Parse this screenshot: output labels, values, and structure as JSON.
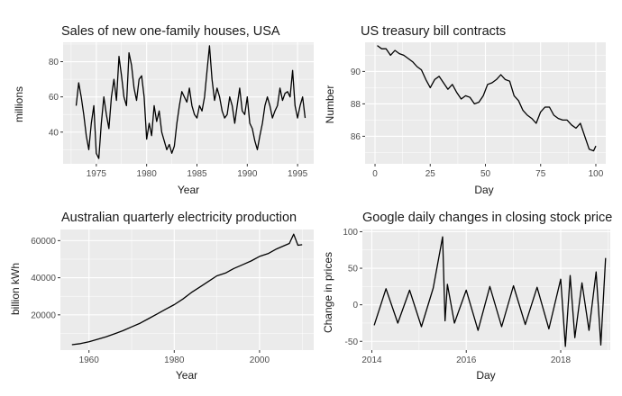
{
  "chart_data": [
    {
      "type": "line",
      "title": "Sales of new one-family houses, USA",
      "xlabel": "Year",
      "ylabel": "millions",
      "xlim": [
        1971.7,
        1996.6
      ],
      "ylim": [
        22,
        91
      ],
      "xticks": [
        1975,
        1980,
        1985,
        1990,
        1995
      ],
      "yticks": [
        40,
        60,
        80
      ],
      "grid": "on",
      "series": [
        {
          "x": [
            1973.0,
            1973.25,
            1973.5,
            1973.75,
            1974.0,
            1974.25,
            1974.5,
            1974.75,
            1975.0,
            1975.25,
            1975.5,
            1975.75,
            1976.0,
            1976.25,
            1976.5,
            1976.75,
            1977.0,
            1977.25,
            1977.5,
            1977.75,
            1978.0,
            1978.25,
            1978.5,
            1978.75,
            1979.0,
            1979.25,
            1979.5,
            1979.75,
            1980.0,
            1980.25,
            1980.5,
            1980.75,
            1981.0,
            1981.25,
            1981.5,
            1981.75,
            1982.0,
            1982.25,
            1982.5,
            1982.75,
            1983.0,
            1983.25,
            1983.5,
            1983.75,
            1984.0,
            1984.25,
            1984.5,
            1984.75,
            1985.0,
            1985.25,
            1985.5,
            1985.75,
            1986.0,
            1986.25,
            1986.5,
            1986.75,
            1987.0,
            1987.25,
            1987.5,
            1987.75,
            1988.0,
            1988.25,
            1988.5,
            1988.75,
            1989.0,
            1989.25,
            1989.5,
            1989.75,
            1990.0,
            1990.25,
            1990.5,
            1990.75,
            1991.0,
            1991.25,
            1991.5,
            1991.75,
            1992.0,
            1992.25,
            1992.5,
            1992.75,
            1993.0,
            1993.25,
            1993.5,
            1993.75,
            1994.0,
            1994.25,
            1994.5,
            1994.75,
            1995.0,
            1995.25,
            1995.5,
            1995.75
          ],
          "values": [
            55,
            68,
            60,
            50,
            38,
            30,
            45,
            55,
            28,
            25,
            45,
            60,
            50,
            42,
            60,
            70,
            58,
            83,
            72,
            60,
            55,
            85,
            78,
            65,
            58,
            70,
            72,
            60,
            36,
            45,
            38,
            55,
            46,
            52,
            40,
            35,
            30,
            33,
            28,
            32,
            45,
            55,
            63,
            60,
            57,
            65,
            55,
            50,
            48,
            55,
            52,
            60,
            75,
            89,
            70,
            58,
            65,
            60,
            52,
            48,
            50,
            60,
            55,
            45,
            55,
            65,
            52,
            50,
            60,
            45,
            42,
            35,
            30,
            38,
            45,
            55,
            60,
            55,
            48,
            52,
            55,
            65,
            58,
            62,
            63,
            60,
            75,
            55,
            48,
            55,
            60,
            48
          ]
        }
      ]
    },
    {
      "type": "line",
      "title": "US treasury bill contracts",
      "xlabel": "Day",
      "ylabel": "Number",
      "xlim": [
        -4.5,
        104.5
      ],
      "ylim": [
        84.3,
        91.8
      ],
      "xticks": [
        0,
        25,
        50,
        75,
        100
      ],
      "yticks": [
        86,
        88,
        90
      ],
      "grid": "on",
      "series": [
        {
          "x": [
            1,
            3,
            5,
            7,
            9,
            11,
            13,
            15,
            17,
            19,
            21,
            23,
            25,
            27,
            29,
            31,
            33,
            35,
            37,
            39,
            41,
            43,
            45,
            47,
            49,
            51,
            53,
            55,
            57,
            59,
            61,
            63,
            65,
            67,
            69,
            71,
            73,
            75,
            77,
            79,
            81,
            83,
            85,
            87,
            89,
            91,
            93,
            95,
            97,
            99,
            100
          ],
          "values": [
            91.6,
            91.4,
            91.4,
            91.0,
            91.3,
            91.1,
            91.0,
            90.8,
            90.6,
            90.3,
            90.1,
            89.5,
            89.0,
            89.5,
            89.7,
            89.3,
            88.9,
            89.2,
            88.7,
            88.3,
            88.5,
            88.4,
            88.0,
            88.1,
            88.5,
            89.2,
            89.3,
            89.5,
            89.8,
            89.5,
            89.4,
            88.5,
            88.2,
            87.6,
            87.3,
            87.1,
            86.8,
            87.5,
            87.8,
            87.8,
            87.3,
            87.1,
            87.0,
            87.0,
            86.7,
            86.5,
            86.8,
            86.0,
            85.2,
            85.1,
            85.4
          ]
        }
      ]
    },
    {
      "type": "line",
      "title": "Australian quarterly electricity production",
      "xlabel": "Year",
      "ylabel": "billion kWh",
      "xlim": [
        1953.3,
        2012.7
      ],
      "ylim": [
        1000,
        66000
      ],
      "xticks": [
        1960,
        1980,
        2000
      ],
      "yticks": [
        20000,
        40000,
        60000
      ],
      "grid": "on",
      "series": [
        {
          "x": [
            1956,
            1958,
            1960,
            1962,
            1964,
            1966,
            1968,
            1970,
            1972,
            1974,
            1976,
            1978,
            1980,
            1982,
            1984,
            1986,
            1988,
            1990,
            1992,
            1994,
            1996,
            1998,
            2000,
            2002,
            2004,
            2006,
            2007,
            2008,
            2009,
            2010
          ],
          "values": [
            3900,
            4500,
            5500,
            6800,
            8200,
            9800,
            11500,
            13500,
            15500,
            18000,
            20500,
            23000,
            25500,
            28500,
            32000,
            35000,
            38000,
            41000,
            42500,
            45000,
            47000,
            49000,
            51500,
            53000,
            55500,
            57500,
            58500,
            63500,
            57500,
            57800
          ]
        }
      ]
    },
    {
      "type": "line",
      "title": "Google daily changes in closing stock price",
      "xlabel": "Day",
      "ylabel": "Change in prices",
      "xlim": [
        2013.8,
        2019.05
      ],
      "ylim": [
        -62,
        103
      ],
      "xticks": [
        2014,
        2016,
        2018
      ],
      "yticks": [
        -50,
        0,
        50,
        100
      ],
      "grid": "on",
      "series": [
        {
          "x": [
            2014.05,
            2014.3,
            2014.55,
            2014.8,
            2015.05,
            2015.3,
            2015.5,
            2015.55,
            2015.6,
            2015.75,
            2016.0,
            2016.25,
            2016.5,
            2016.75,
            2017.0,
            2017.25,
            2017.5,
            2017.75,
            2018.0,
            2018.1,
            2018.2,
            2018.3,
            2018.45,
            2018.6,
            2018.75,
            2018.85,
            2018.95
          ],
          "values": [
            -28,
            22,
            -25,
            20,
            -30,
            23,
            93,
            -22,
            28,
            -25,
            20,
            -35,
            25,
            -30,
            26,
            -27,
            24,
            -33,
            35,
            -57,
            40,
            -45,
            30,
            -35,
            45,
            -55,
            64
          ]
        }
      ]
    }
  ]
}
